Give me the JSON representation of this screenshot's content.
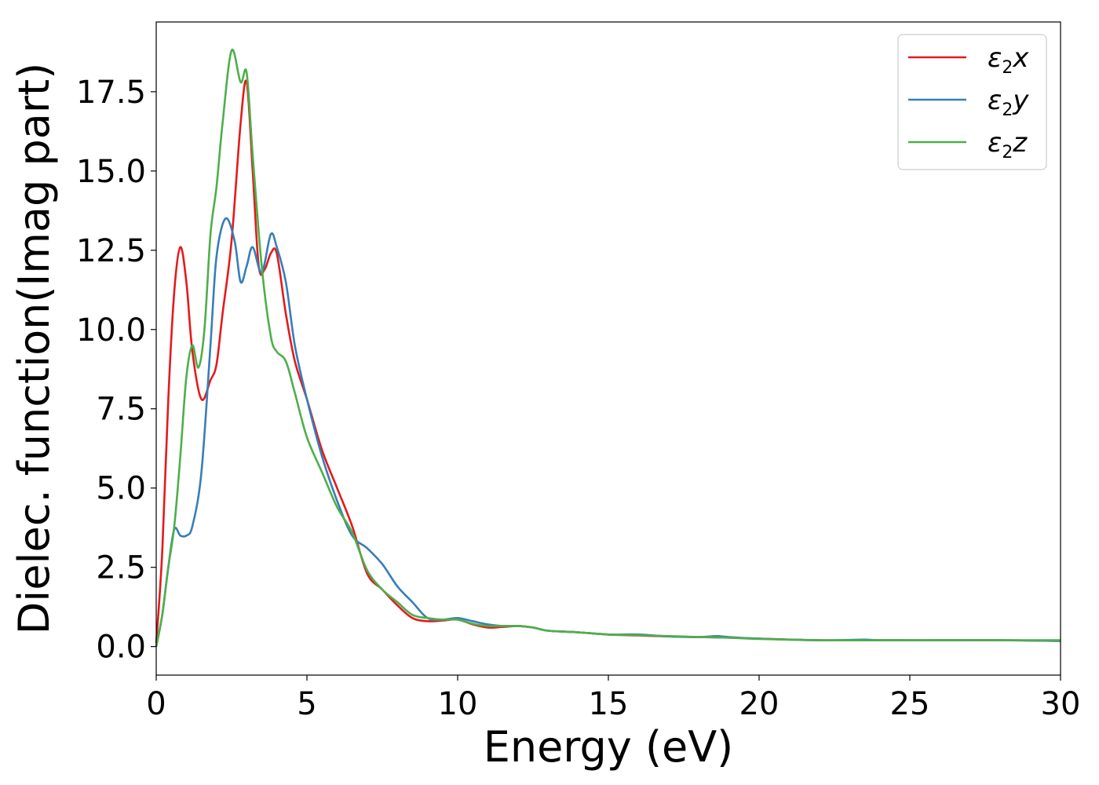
{
  "chart_data": {
    "type": "line",
    "xlabel": "Energy (eV)",
    "ylabel": "Dielec. function(Imag part)",
    "xlim": [
      0,
      30
    ],
    "ylim": [
      -0.9,
      19.7
    ],
    "xticks": [
      0,
      5,
      10,
      15,
      20,
      25,
      30
    ],
    "xtick_labels": [
      "0",
      "5",
      "10",
      "15",
      "20",
      "25",
      "30"
    ],
    "yticks": [
      0.0,
      2.5,
      5.0,
      7.5,
      10.0,
      12.5,
      15.0,
      17.5
    ],
    "ytick_labels": [
      "0.0",
      "2.5",
      "5.0",
      "7.5",
      "10.0",
      "12.5",
      "15.0",
      "17.5"
    ],
    "grid": false,
    "legend_position": "top-right",
    "legend_labels": [
      {
        "base": "ε",
        "sub": "2",
        "tail": "x"
      },
      {
        "base": "ε",
        "sub": "2",
        "tail": "y"
      },
      {
        "base": "ε",
        "sub": "2",
        "tail": "z"
      }
    ],
    "series": [
      {
        "name": "ε2x",
        "color": "#e41a1c",
        "x": [
          0,
          0.2,
          0.4,
          0.6,
          0.8,
          1.0,
          1.2,
          1.5,
          1.8,
          2.0,
          2.2,
          2.5,
          2.8,
          3.0,
          3.2,
          3.4,
          3.6,
          3.8,
          4.0,
          4.3,
          4.6,
          5.0,
          5.5,
          6.0,
          6.5,
          7.0,
          7.5,
          8.0,
          8.5,
          9.0,
          9.5,
          10.0,
          10.5,
          11.0,
          11.5,
          12.0,
          12.5,
          13.0,
          14.0,
          15.0,
          16.0,
          17.0,
          18.0,
          19.0,
          20.0,
          22.0,
          24.0,
          26.0,
          28.0,
          30.0
        ],
        "y": [
          0.1,
          3.0,
          7.8,
          11.2,
          12.6,
          11.5,
          9.3,
          7.8,
          8.4,
          8.9,
          10.5,
          12.8,
          16.5,
          17.8,
          15.0,
          12.0,
          11.9,
          12.4,
          12.4,
          10.5,
          9.0,
          7.8,
          6.2,
          5.0,
          3.8,
          2.3,
          1.8,
          1.3,
          0.9,
          0.8,
          0.82,
          0.85,
          0.7,
          0.6,
          0.62,
          0.65,
          0.6,
          0.5,
          0.45,
          0.38,
          0.35,
          0.32,
          0.3,
          0.28,
          0.25,
          0.2,
          0.2,
          0.2,
          0.2,
          0.18
        ]
      },
      {
        "name": "ε2y",
        "color": "#377eb8",
        "x": [
          0,
          0.2,
          0.4,
          0.6,
          0.8,
          1.0,
          1.2,
          1.5,
          1.8,
          2.0,
          2.3,
          2.6,
          2.8,
          3.0,
          3.2,
          3.5,
          3.8,
          4.0,
          4.3,
          4.6,
          5.0,
          5.5,
          6.0,
          6.5,
          7.0,
          7.5,
          8.0,
          8.5,
          9.0,
          9.5,
          10.0,
          10.5,
          11.0,
          11.5,
          12.0,
          12.5,
          13.0,
          14.0,
          15.0,
          16.0,
          17.0,
          18.0,
          18.6,
          19.0,
          20.0,
          22.0,
          23.5,
          24.0,
          26.0,
          28.0,
          30.0
        ],
        "y": [
          0.0,
          1.0,
          2.5,
          3.7,
          3.5,
          3.5,
          3.8,
          5.5,
          9.5,
          12.3,
          13.5,
          12.8,
          11.5,
          12.0,
          12.6,
          11.8,
          13.0,
          12.6,
          11.5,
          9.5,
          7.8,
          6.0,
          4.6,
          3.5,
          3.1,
          2.6,
          1.9,
          1.4,
          0.9,
          0.85,
          0.9,
          0.8,
          0.7,
          0.65,
          0.65,
          0.6,
          0.5,
          0.45,
          0.38,
          0.38,
          0.32,
          0.3,
          0.33,
          0.3,
          0.25,
          0.2,
          0.22,
          0.2,
          0.2,
          0.2,
          0.18
        ]
      },
      {
        "name": "ε2z",
        "color": "#4daf4a",
        "x": [
          0,
          0.2,
          0.4,
          0.6,
          0.8,
          1.0,
          1.2,
          1.4,
          1.6,
          1.8,
          2.0,
          2.2,
          2.5,
          2.8,
          3.0,
          3.2,
          3.5,
          3.8,
          4.0,
          4.3,
          4.6,
          5.0,
          5.5,
          6.0,
          6.5,
          7.0,
          7.5,
          8.0,
          8.5,
          9.0,
          9.5,
          10.0,
          10.5,
          11.0,
          11.5,
          12.0,
          12.5,
          13.0,
          14.0,
          15.0,
          16.0,
          17.0,
          18.0,
          19.0,
          20.0,
          22.0,
          24.0,
          26.0,
          28.0,
          30.0
        ],
        "y": [
          0.0,
          1.0,
          2.5,
          3.8,
          6.0,
          8.5,
          9.5,
          8.8,
          10.0,
          13.0,
          14.5,
          16.5,
          18.8,
          17.8,
          18.1,
          15.5,
          12.0,
          9.8,
          9.3,
          9.0,
          8.0,
          6.6,
          5.5,
          4.4,
          3.6,
          2.4,
          1.8,
          1.4,
          1.0,
          0.9,
          0.85,
          0.85,
          0.72,
          0.65,
          0.65,
          0.65,
          0.6,
          0.5,
          0.45,
          0.38,
          0.36,
          0.33,
          0.3,
          0.28,
          0.24,
          0.2,
          0.2,
          0.2,
          0.2,
          0.2
        ]
      }
    ]
  }
}
